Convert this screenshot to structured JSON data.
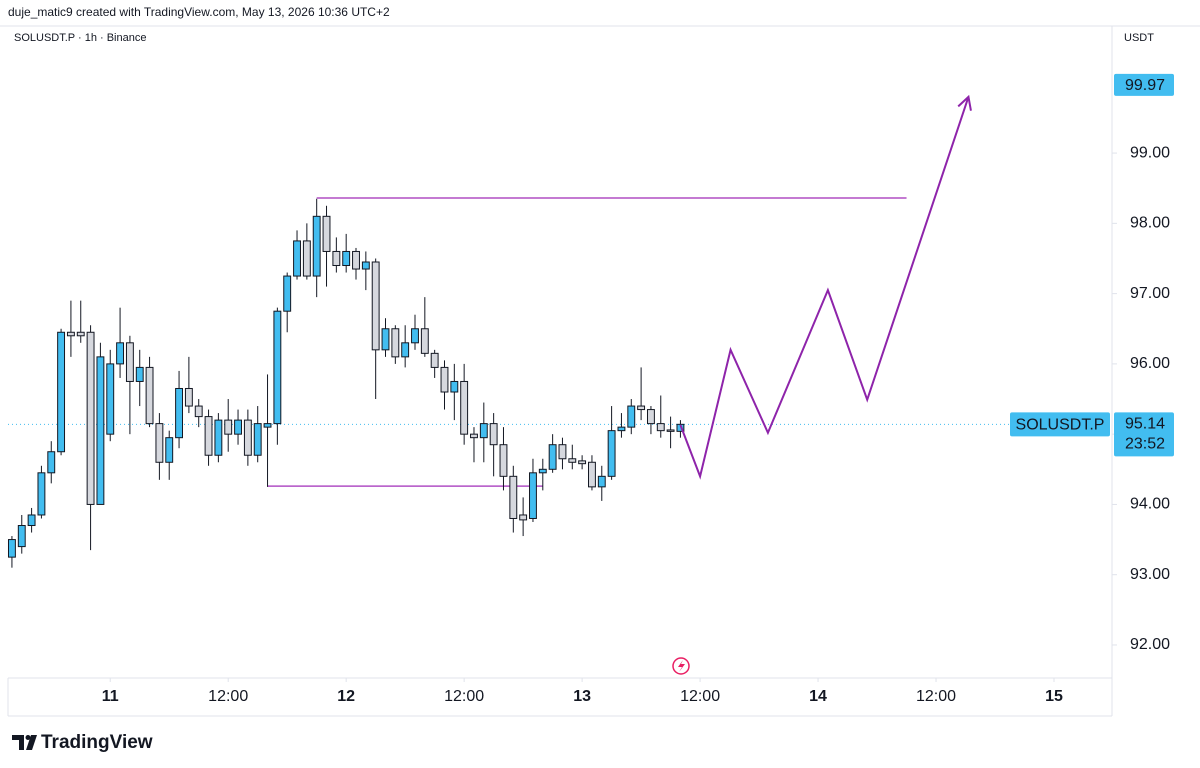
{
  "header": {
    "credit": "duje_matic9 created with TradingView.com, May 13, 2026 10:36 UTC+2",
    "brand": "TradingView"
  },
  "chart_data": {
    "type": "candlestick",
    "title": "SOLUSDT.P · 1h · Binance",
    "currency": "USDT",
    "up_color": "#42bdf0",
    "down_color": "#d6d8de",
    "open": [
      93.25,
      93.4,
      93.7,
      93.85,
      94.45,
      94.75,
      96.45,
      96.45,
      96.45,
      94.0,
      95.0,
      96.0,
      96.3,
      95.75,
      95.95,
      95.15,
      94.6,
      94.95,
      95.65,
      95.4,
      95.25,
      94.7,
      95.2,
      95.0,
      95.2,
      94.7,
      95.1,
      95.15,
      96.75,
      97.25,
      97.75,
      97.25,
      98.1,
      97.6,
      97.4,
      97.6,
      97.35,
      97.45,
      96.2,
      96.5,
      96.1,
      96.3,
      96.5,
      96.15,
      95.95,
      95.6,
      95.75,
      95.0,
      94.95,
      95.15,
      94.85,
      94.4,
      93.85,
      93.8,
      94.45,
      94.5,
      94.85,
      94.65,
      94.62,
      94.6,
      94.25,
      94.4,
      95.05,
      95.1,
      95.4,
      95.35,
      95.15,
      95.06,
      95.04
    ],
    "high": [
      93.55,
      93.85,
      93.95,
      94.55,
      94.9,
      96.5,
      96.9,
      96.9,
      96.55,
      96.3,
      96.2,
      96.8,
      96.4,
      96.2,
      96.1,
      95.3,
      95.05,
      95.9,
      96.1,
      95.5,
      95.35,
      95.3,
      95.5,
      95.35,
      95.35,
      95.4,
      95.85,
      96.8,
      97.3,
      97.9,
      98.0,
      98.35,
      98.25,
      97.8,
      97.85,
      97.65,
      97.6,
      97.5,
      96.65,
      96.55,
      96.55,
      96.7,
      96.95,
      96.2,
      96.05,
      96.0,
      96.0,
      95.1,
      95.45,
      95.3,
      95.1,
      94.55,
      94.1,
      94.65,
      94.65,
      95.0,
      94.95,
      94.85,
      94.7,
      94.7,
      94.55,
      95.4,
      95.3,
      95.5,
      95.95,
      95.4,
      95.55,
      95.25,
      95.2
    ],
    "low": [
      93.1,
      93.3,
      93.6,
      93.8,
      94.3,
      94.7,
      96.1,
      96.3,
      93.35,
      94.0,
      94.9,
      95.8,
      95.0,
      95.4,
      95.1,
      94.35,
      94.35,
      94.8,
      95.3,
      95.1,
      94.55,
      94.6,
      94.75,
      94.85,
      94.55,
      94.6,
      94.25,
      94.85,
      96.45,
      97.2,
      97.2,
      96.95,
      97.1,
      97.3,
      97.3,
      97.2,
      97.05,
      95.5,
      96.1,
      96.0,
      95.95,
      96.2,
      96.1,
      95.8,
      95.35,
      95.2,
      94.85,
      94.6,
      94.6,
      94.4,
      94.2,
      93.6,
      93.55,
      93.75,
      94.2,
      94.45,
      94.5,
      94.5,
      94.5,
      94.2,
      94.05,
      94.35,
      94.95,
      95.0,
      95.2,
      95.0,
      94.95,
      94.8,
      94.95
    ],
    "close": [
      93.5,
      93.7,
      93.85,
      94.45,
      94.75,
      96.45,
      96.4,
      96.4,
      94.0,
      96.1,
      96.0,
      96.3,
      95.75,
      95.95,
      95.15,
      94.6,
      94.95,
      95.65,
      95.4,
      95.25,
      94.7,
      95.2,
      95.0,
      95.2,
      94.7,
      95.15,
      95.15,
      96.75,
      97.25,
      97.75,
      97.25,
      98.1,
      97.6,
      97.4,
      97.6,
      97.35,
      97.45,
      96.2,
      96.5,
      96.1,
      96.3,
      96.5,
      96.15,
      95.95,
      95.6,
      95.75,
      95.0,
      94.95,
      95.15,
      94.85,
      94.4,
      93.8,
      93.78,
      94.45,
      94.5,
      94.85,
      94.65,
      94.6,
      94.58,
      94.25,
      94.4,
      95.05,
      95.1,
      95.4,
      95.35,
      95.15,
      95.05,
      95.04,
      95.14
    ],
    "xlim": [
      -0.4,
      111.9
    ],
    "xticks": [
      {
        "value": 10,
        "label": "11"
      },
      {
        "value": 22,
        "label": "12:00"
      },
      {
        "value": 34,
        "label": "12"
      },
      {
        "value": 46,
        "label": "12:00"
      },
      {
        "value": 58,
        "label": "13"
      },
      {
        "value": 70,
        "label": "12:00"
      },
      {
        "value": 82,
        "label": "14"
      },
      {
        "value": 94,
        "label": "12:00"
      },
      {
        "value": 106,
        "label": "15"
      }
    ],
    "ylim": [
      91.53,
      100.78
    ],
    "yticks": [
      {
        "value": 92,
        "label": "92.00"
      },
      {
        "value": 93,
        "label": "93.00"
      },
      {
        "value": 94,
        "label": "94.00"
      },
      {
        "value": 95,
        "label": "95.00"
      },
      {
        "value": 96,
        "label": "96.00"
      },
      {
        "value": 97,
        "label": "97.00"
      },
      {
        "value": 98,
        "label": "98.00"
      },
      {
        "value": 99,
        "label": "99.00"
      }
    ],
    "levels": [
      {
        "value": 98.36,
        "x": [
          31,
          91
        ]
      },
      {
        "value": 94.26,
        "x": [
          26,
          54
        ]
      }
    ],
    "level_color": "#b04fc4",
    "projection": {
      "x": [
        68,
        70,
        73.1,
        76.9,
        83,
        87,
        97.3
      ],
      "values": [
        95.13,
        94.4,
        96.2,
        95.02,
        97.05,
        95.49,
        99.8
      ],
      "color": "#8e24aa"
    },
    "target_label": 99.97,
    "last_price": {
      "label": "SOLUSDT.P",
      "value": 95.14,
      "countdown": "23:52"
    }
  }
}
